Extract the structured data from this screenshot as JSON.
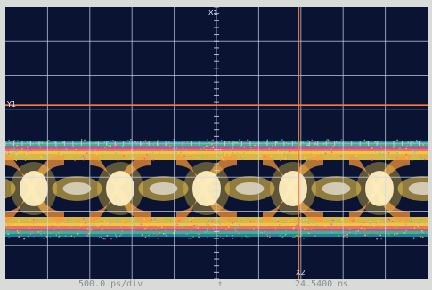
{
  "status": {
    "timebase": "500.0 ps/div",
    "trigger_symbol": "↑",
    "time_position": "24.5400 ns"
  },
  "markers": {
    "y1": "Y1",
    "x1_top": "X1",
    "x2_bottom": "X2"
  },
  "colors": {
    "screen_bg": "#0a1432",
    "grid": "#cfd6ee",
    "marker_line": "#ff7a3a",
    "eye_core": "#ffffff",
    "eye_warm": "#ffd24a",
    "eye_hot": "#ff9a3a",
    "eye_edge_magenta": "#ff3ad0",
    "eye_edge_green": "#44e06a",
    "eye_edge_cyan": "#3ad7ff"
  },
  "display": {
    "grid_divisions_x": 10,
    "grid_divisions_y": 8,
    "marker_y_level": 0.36,
    "marker_x_level": 0.695
  }
}
